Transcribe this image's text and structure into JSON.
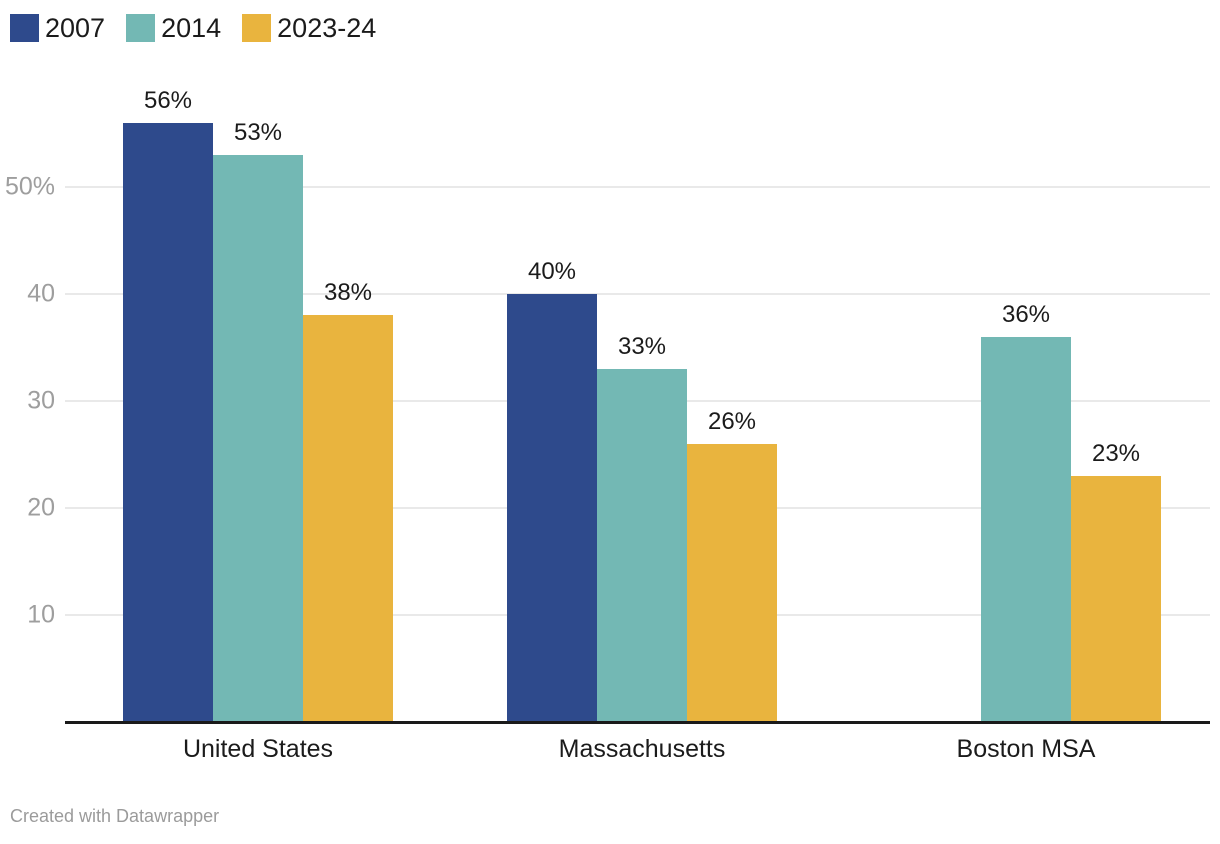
{
  "chart_data": {
    "type": "bar",
    "categories": [
      "United States",
      "Massachusetts",
      "Boston MSA"
    ],
    "series": [
      {
        "name": "2007",
        "color": "#2e4a8c",
        "values": [
          56,
          40,
          null
        ]
      },
      {
        "name": "2014",
        "color": "#73b8b4",
        "values": [
          53,
          33,
          36
        ]
      },
      {
        "name": "2023-24",
        "color": "#e9b43e",
        "values": [
          38,
          26,
          23
        ]
      }
    ],
    "value_suffix": "%",
    "title": "",
    "xlabel": "",
    "ylabel": "",
    "y_axis": {
      "min": 0,
      "max": 60,
      "ticks": [
        10,
        20,
        30,
        40,
        50
      ],
      "tick_labels": [
        "10",
        "20",
        "30",
        "40",
        "50%"
      ],
      "grid": true
    },
    "legend_position": "top-left",
    "value_labels_shown": true
  },
  "footer": {
    "credit": "Created with Datawrapper"
  },
  "colors": {
    "background": "#ffffff",
    "grid": "#e9e9e9",
    "axis": "#1a1a1a",
    "tick-text": "#9e9e9e",
    "label-text": "#1b1b1b",
    "footer-text": "#9b9b9b"
  }
}
